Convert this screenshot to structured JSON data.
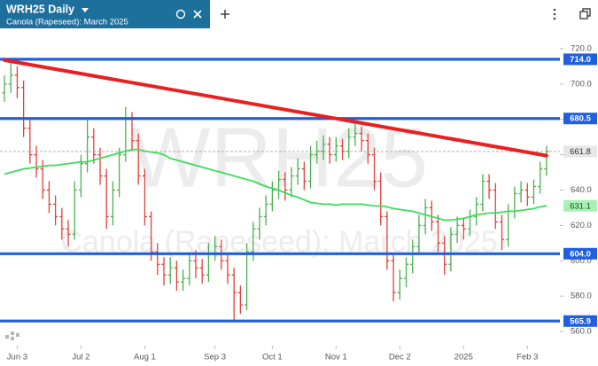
{
  "chart_data": {
    "type": "ohlc",
    "title": "WRH25 Daily",
    "subtitle": "Canola (Rapeseed): March 2025",
    "watermark": {
      "symbol": "WRH25",
      "name": "Canola (Rapeseed): March 2025"
    },
    "xlim": [
      -0.7,
      87.1
    ],
    "xticks": [
      {
        "value": 2,
        "label": "Jun 3"
      },
      {
        "value": 12,
        "label": "Jul 2"
      },
      {
        "value": 22,
        "label": "Aug 1"
      },
      {
        "value": 33,
        "label": "Sep 3"
      },
      {
        "value": 42,
        "label": "Oct 1"
      },
      {
        "value": 52,
        "label": "Nov 1"
      },
      {
        "value": 62,
        "label": "Dec 2"
      },
      {
        "value": 72,
        "label": "2025"
      },
      {
        "value": 82,
        "label": "Feb 3"
      }
    ],
    "ylim": [
      552,
      731.5
    ],
    "yticks": [
      {
        "value": 560,
        "label": "560.0"
      },
      {
        "value": 580,
        "label": "580.0"
      },
      {
        "value": 600,
        "label": "600.0"
      },
      {
        "value": 620,
        "label": "620.0"
      },
      {
        "value": 640,
        "label": "640.0"
      },
      {
        "value": 660,
        "label": "660.0"
      },
      {
        "value": 680,
        "label": "680.0"
      },
      {
        "value": 700,
        "label": "700.0"
      },
      {
        "value": 720,
        "label": "720.0"
      }
    ],
    "ohlc": {
      "up_color": "#4caf50",
      "down_color": "#e0413a",
      "open": [
        695,
        700,
        705,
        698,
        675,
        660,
        652,
        640,
        632,
        625,
        618,
        615,
        640,
        655,
        670,
        660,
        648,
        625,
        640,
        660,
        680,
        668,
        648,
        625,
        605,
        598,
        592,
        596,
        588,
        590,
        600,
        596,
        592,
        604,
        608,
        600,
        592,
        582,
        575,
        605,
        618,
        625,
        632,
        640,
        646,
        640,
        648,
        652,
        645,
        660,
        662,
        666,
        660,
        665,
        662,
        670,
        672,
        668,
        660,
        645,
        625,
        600,
        582,
        590,
        598,
        608,
        620,
        630,
        622,
        610,
        598,
        615,
        620,
        618,
        625,
        632,
        645,
        640,
        622,
        612,
        628,
        638,
        640,
        636,
        642,
        652
      ],
      "high": [
        705,
        712,
        710,
        702,
        680,
        665,
        657,
        645,
        637,
        630,
        623,
        645,
        660,
        680,
        675,
        664,
        652,
        645,
        664,
        687,
        684,
        672,
        652,
        628,
        610,
        602,
        602,
        600,
        595,
        605,
        606,
        601,
        610,
        614,
        612,
        604,
        596,
        586,
        610,
        622,
        630,
        637,
        645,
        651,
        650,
        653,
        658,
        656,
        665,
        668,
        671,
        670,
        670,
        669,
        675,
        678,
        676,
        672,
        664,
        650,
        628,
        604,
        595,
        602,
        612,
        626,
        635,
        634,
        626,
        614,
        619,
        625,
        624,
        629,
        636,
        649,
        649,
        644,
        626,
        632,
        642,
        645,
        644,
        646,
        656,
        665
      ],
      "low": [
        690,
        695,
        692,
        670,
        655,
        647,
        635,
        627,
        620,
        612,
        608,
        612,
        636,
        650,
        655,
        643,
        618,
        620,
        636,
        656,
        662,
        643,
        620,
        600,
        592,
        586,
        587,
        583,
        583,
        586,
        590,
        587,
        588,
        600,
        595,
        587,
        566,
        570,
        572,
        600,
        612,
        620,
        628,
        635,
        634,
        636,
        643,
        640,
        641,
        655,
        657,
        655,
        656,
        657,
        658,
        665,
        662,
        655,
        640,
        620,
        595,
        577,
        578,
        585,
        593,
        604,
        615,
        617,
        605,
        592,
        594,
        610,
        612,
        614,
        620,
        628,
        635,
        618,
        606,
        608,
        624,
        633,
        631,
        632,
        638,
        648
      ],
      "close": [
        700,
        705,
        698,
        675,
        660,
        652,
        640,
        632,
        625,
        618,
        615,
        640,
        655,
        670,
        660,
        648,
        625,
        640,
        660,
        680,
        668,
        648,
        625,
        605,
        598,
        592,
        596,
        588,
        590,
        600,
        596,
        592,
        604,
        608,
        600,
        592,
        582,
        575,
        605,
        618,
        625,
        632,
        640,
        646,
        640,
        648,
        652,
        645,
        660,
        662,
        666,
        660,
        665,
        662,
        670,
        672,
        668,
        660,
        645,
        625,
        600,
        582,
        590,
        598,
        608,
        620,
        630,
        622,
        610,
        598,
        615,
        620,
        618,
        625,
        632,
        645,
        640,
        622,
        612,
        628,
        638,
        640,
        636,
        642,
        652,
        661.8
      ]
    },
    "series": [
      {
        "color": "#3ddc5a",
        "values": [
          649,
          650,
          651,
          652,
          652.5,
          653,
          653.5,
          654,
          654,
          654.5,
          655,
          655.5,
          656,
          656,
          657,
          658,
          659,
          660,
          661,
          662,
          663,
          663,
          662,
          661.5,
          661,
          660,
          658,
          657,
          656,
          655,
          654,
          653,
          652,
          651,
          650,
          649,
          648,
          647,
          646,
          645,
          643.5,
          642,
          641,
          640,
          638.5,
          637,
          636,
          634.5,
          633,
          632.5,
          632,
          632,
          631.5,
          632,
          632,
          632,
          632,
          631.5,
          631,
          631,
          630.5,
          629.5,
          629,
          628.5,
          628,
          627,
          626,
          625,
          624,
          623,
          623,
          623.5,
          624,
          625,
          626,
          626.5,
          627,
          627,
          627.5,
          628,
          628,
          628.5,
          629,
          629.5,
          630.5,
          631.1
        ]
      }
    ],
    "levels": [
      {
        "value": 714,
        "label": "714.0"
      },
      680.5,
      {
        "value": 604,
        "label": "604.0"
      },
      565.9
    ],
    "level_color": "#1f5fe0",
    "trendline": {
      "color": "#e8201f",
      "x": [
        0,
        85
      ],
      "values": [
        713.5,
        659.5
      ]
    }
  }
}
